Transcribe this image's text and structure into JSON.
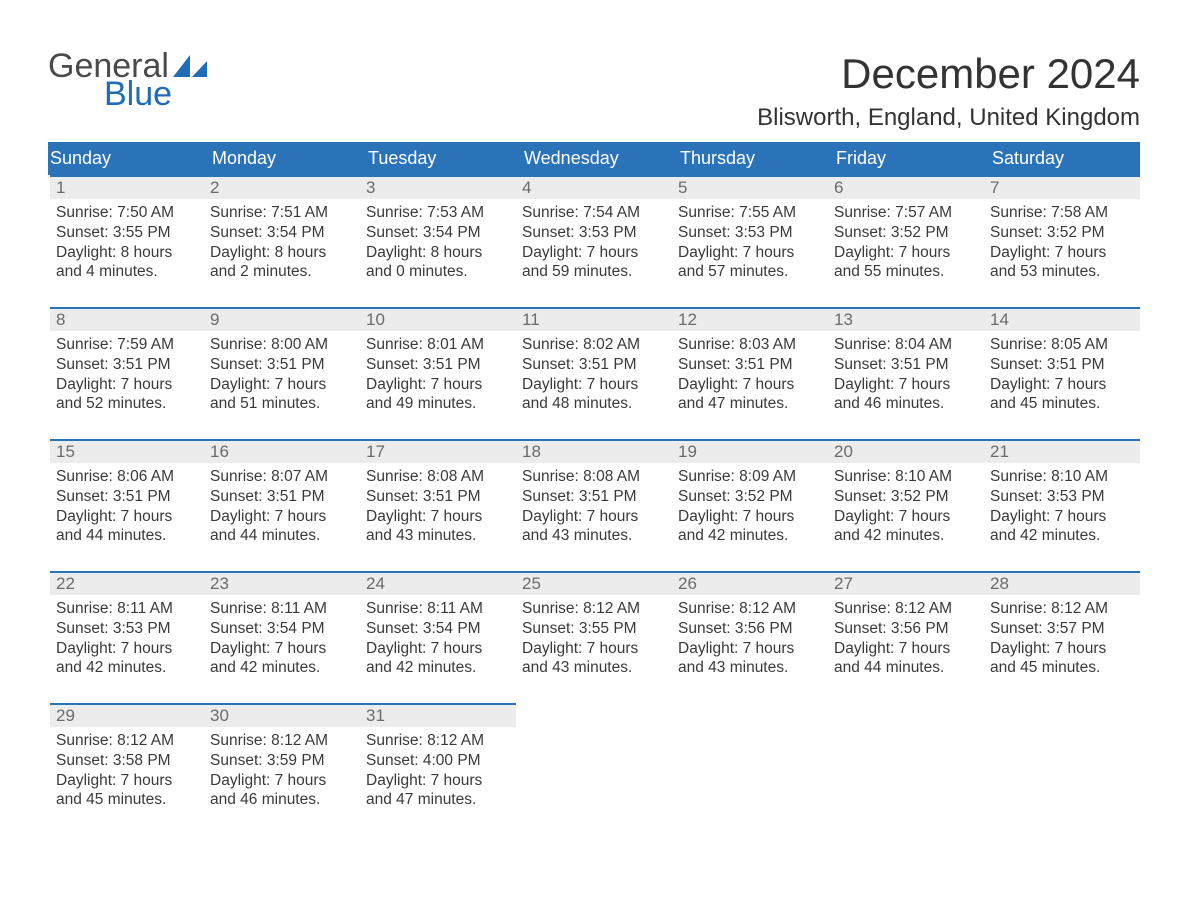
{
  "logo": {
    "text1": "General",
    "text2": "Blue",
    "color_text": "#4a4a4a",
    "color_blue": "#1e6db6"
  },
  "header": {
    "title": "December 2024",
    "location": "Blisworth, England, United Kingdom"
  },
  "styling": {
    "header_row_bg": "#2b73b8",
    "header_row_text": "#ffffff",
    "daynum_bg": "#ececec",
    "daynum_border_top": "#2b73b8",
    "body_text": "#3a3a3a",
    "page_bg": "#ffffff",
    "title_fontsize": 42,
    "location_fontsize": 24,
    "day_header_fontsize": 18,
    "cell_fontsize": 15.5
  },
  "calendar": {
    "day_names": [
      "Sunday",
      "Monday",
      "Tuesday",
      "Wednesday",
      "Thursday",
      "Friday",
      "Saturday"
    ],
    "weeks": [
      [
        {
          "n": "1",
          "sunrise": "7:50 AM",
          "sunset": "3:55 PM",
          "dl1": "8 hours",
          "dl2": "and 4 minutes."
        },
        {
          "n": "2",
          "sunrise": "7:51 AM",
          "sunset": "3:54 PM",
          "dl1": "8 hours",
          "dl2": "and 2 minutes."
        },
        {
          "n": "3",
          "sunrise": "7:53 AM",
          "sunset": "3:54 PM",
          "dl1": "8 hours",
          "dl2": "and 0 minutes."
        },
        {
          "n": "4",
          "sunrise": "7:54 AM",
          "sunset": "3:53 PM",
          "dl1": "7 hours",
          "dl2": "and 59 minutes."
        },
        {
          "n": "5",
          "sunrise": "7:55 AM",
          "sunset": "3:53 PM",
          "dl1": "7 hours",
          "dl2": "and 57 minutes."
        },
        {
          "n": "6",
          "sunrise": "7:57 AM",
          "sunset": "3:52 PM",
          "dl1": "7 hours",
          "dl2": "and 55 minutes."
        },
        {
          "n": "7",
          "sunrise": "7:58 AM",
          "sunset": "3:52 PM",
          "dl1": "7 hours",
          "dl2": "and 53 minutes."
        }
      ],
      [
        {
          "n": "8",
          "sunrise": "7:59 AM",
          "sunset": "3:51 PM",
          "dl1": "7 hours",
          "dl2": "and 52 minutes."
        },
        {
          "n": "9",
          "sunrise": "8:00 AM",
          "sunset": "3:51 PM",
          "dl1": "7 hours",
          "dl2": "and 51 minutes."
        },
        {
          "n": "10",
          "sunrise": "8:01 AM",
          "sunset": "3:51 PM",
          "dl1": "7 hours",
          "dl2": "and 49 minutes."
        },
        {
          "n": "11",
          "sunrise": "8:02 AM",
          "sunset": "3:51 PM",
          "dl1": "7 hours",
          "dl2": "and 48 minutes."
        },
        {
          "n": "12",
          "sunrise": "8:03 AM",
          "sunset": "3:51 PM",
          "dl1": "7 hours",
          "dl2": "and 47 minutes."
        },
        {
          "n": "13",
          "sunrise": "8:04 AM",
          "sunset": "3:51 PM",
          "dl1": "7 hours",
          "dl2": "and 46 minutes."
        },
        {
          "n": "14",
          "sunrise": "8:05 AM",
          "sunset": "3:51 PM",
          "dl1": "7 hours",
          "dl2": "and 45 minutes."
        }
      ],
      [
        {
          "n": "15",
          "sunrise": "8:06 AM",
          "sunset": "3:51 PM",
          "dl1": "7 hours",
          "dl2": "and 44 minutes."
        },
        {
          "n": "16",
          "sunrise": "8:07 AM",
          "sunset": "3:51 PM",
          "dl1": "7 hours",
          "dl2": "and 44 minutes."
        },
        {
          "n": "17",
          "sunrise": "8:08 AM",
          "sunset": "3:51 PM",
          "dl1": "7 hours",
          "dl2": "and 43 minutes."
        },
        {
          "n": "18",
          "sunrise": "8:08 AM",
          "sunset": "3:51 PM",
          "dl1": "7 hours",
          "dl2": "and 43 minutes."
        },
        {
          "n": "19",
          "sunrise": "8:09 AM",
          "sunset": "3:52 PM",
          "dl1": "7 hours",
          "dl2": "and 42 minutes."
        },
        {
          "n": "20",
          "sunrise": "8:10 AM",
          "sunset": "3:52 PM",
          "dl1": "7 hours",
          "dl2": "and 42 minutes."
        },
        {
          "n": "21",
          "sunrise": "8:10 AM",
          "sunset": "3:53 PM",
          "dl1": "7 hours",
          "dl2": "and 42 minutes."
        }
      ],
      [
        {
          "n": "22",
          "sunrise": "8:11 AM",
          "sunset": "3:53 PM",
          "dl1": "7 hours",
          "dl2": "and 42 minutes."
        },
        {
          "n": "23",
          "sunrise": "8:11 AM",
          "sunset": "3:54 PM",
          "dl1": "7 hours",
          "dl2": "and 42 minutes."
        },
        {
          "n": "24",
          "sunrise": "8:11 AM",
          "sunset": "3:54 PM",
          "dl1": "7 hours",
          "dl2": "and 42 minutes."
        },
        {
          "n": "25",
          "sunrise": "8:12 AM",
          "sunset": "3:55 PM",
          "dl1": "7 hours",
          "dl2": "and 43 minutes."
        },
        {
          "n": "26",
          "sunrise": "8:12 AM",
          "sunset": "3:56 PM",
          "dl1": "7 hours",
          "dl2": "and 43 minutes."
        },
        {
          "n": "27",
          "sunrise": "8:12 AM",
          "sunset": "3:56 PM",
          "dl1": "7 hours",
          "dl2": "and 44 minutes."
        },
        {
          "n": "28",
          "sunrise": "8:12 AM",
          "sunset": "3:57 PM",
          "dl1": "7 hours",
          "dl2": "and 45 minutes."
        }
      ],
      [
        {
          "n": "29",
          "sunrise": "8:12 AM",
          "sunset": "3:58 PM",
          "dl1": "7 hours",
          "dl2": "and 45 minutes."
        },
        {
          "n": "30",
          "sunrise": "8:12 AM",
          "sunset": "3:59 PM",
          "dl1": "7 hours",
          "dl2": "and 46 minutes."
        },
        {
          "n": "31",
          "sunrise": "8:12 AM",
          "sunset": "4:00 PM",
          "dl1": "7 hours",
          "dl2": "and 47 minutes."
        },
        null,
        null,
        null,
        null
      ]
    ],
    "labels": {
      "sunrise": "Sunrise:",
      "sunset": "Sunset:",
      "daylight": "Daylight:"
    }
  }
}
